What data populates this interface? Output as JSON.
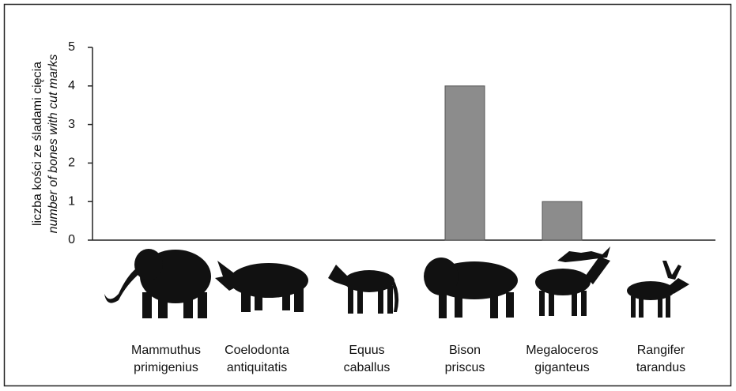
{
  "chart_data": {
    "type": "bar",
    "ylabel": "liczba kości ze śladami cięcia",
    "ylabel_en": "number of bones with cut marks",
    "categories": [
      [
        "Mammuthus",
        "primigenius"
      ],
      [
        "Coelodonta",
        "antiquitatis"
      ],
      [
        "Equus",
        "caballus"
      ],
      [
        "Bison",
        "priscus"
      ],
      [
        "Megaloceros",
        "giganteus"
      ],
      [
        "Rangifer",
        "tarandus"
      ]
    ],
    "values": [
      0,
      0,
      0,
      4,
      1,
      0
    ],
    "color": "#8c8c8c",
    "ylim": [
      0,
      5
    ],
    "yticks": [
      0,
      1,
      2,
      3,
      4,
      5
    ]
  }
}
